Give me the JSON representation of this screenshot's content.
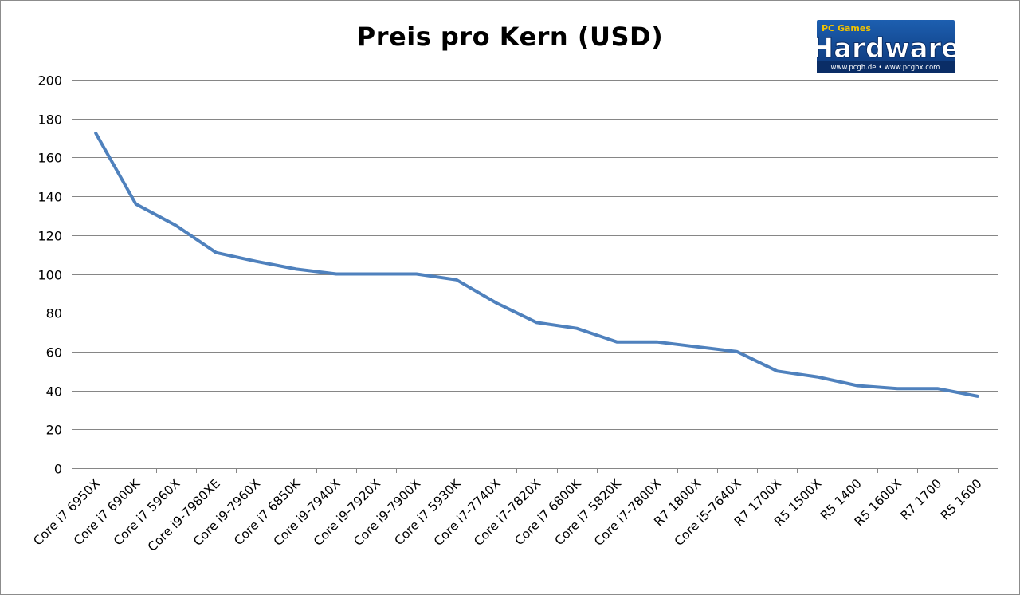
{
  "logo": {
    "tag": "PC Games",
    "name": "Hardware",
    "url": "www.pcgh.de • www.pcghx.com"
  },
  "chart_data": {
    "type": "line",
    "title": "Preis pro Kern (USD)",
    "xlabel": "",
    "ylabel": "",
    "ylim": [
      0,
      200
    ],
    "yticks": [
      0,
      20,
      40,
      60,
      80,
      100,
      120,
      140,
      160,
      180,
      200
    ],
    "grid": true,
    "legend": "none",
    "color": "#4f81bd",
    "categories": [
      "Core i7 6950X",
      "Core i7 6900K",
      "Core i7 5960X",
      "Core i9-7980XE",
      "Core i9-7960X",
      "Core i7 6850K",
      "Core i9-7940X",
      "Core i9-7920X",
      "Core i9-7900X",
      "Core i7 5930K",
      "Core i7-7740X",
      "Core i7-7820X",
      "Core i7 6800K",
      "Core i7 5820K",
      "Core i7-7800X",
      "R7 1800X",
      "Core i5-7640X",
      "R7 1700X",
      "R5 1500X",
      "R5 1400",
      "R5 1600X",
      "R7 1700",
      "R5 1600"
    ],
    "values": [
      172.5,
      136,
      125,
      111,
      106.5,
      102.5,
      100,
      100,
      100,
      97,
      85,
      75,
      72,
      65,
      65,
      62.5,
      60,
      50,
      47,
      42.5,
      41,
      41,
      37
    ]
  }
}
